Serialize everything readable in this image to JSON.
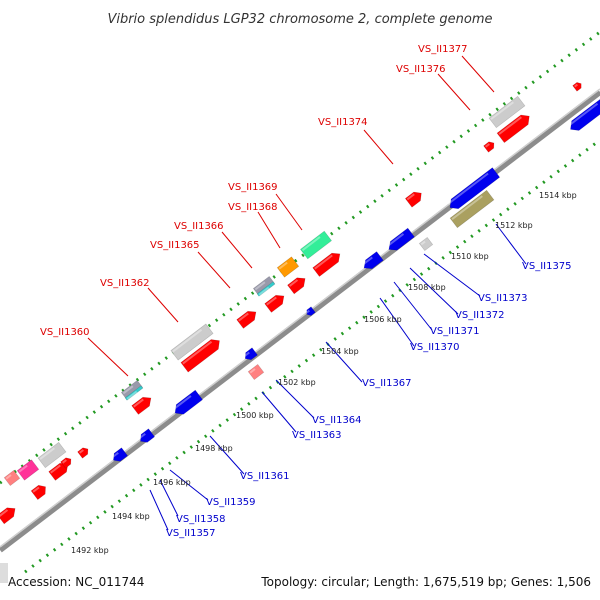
{
  "title": "Vibrio splendidus LGP32 chromosome 2, complete genome",
  "footer": {
    "accession": "Accession: NC_011744",
    "summary": "Topology: circular; Length: 1,675,519 bp; Genes: 1,506"
  },
  "colors": {
    "forward_label": "#dd0000",
    "reverse_label": "#0000cc",
    "backbone": "#999999",
    "tick_dots": "#229922"
  },
  "ticks": [
    "1492 kbp",
    "1494 kbp",
    "1496 kbp",
    "1498 kbp",
    "1500 kbp",
    "1502 kbp",
    "1504 kbp",
    "1506 kbp",
    "1508 kbp",
    "1510 kbp",
    "1512 kbp",
    "1514 kbp"
  ],
  "forward_labels": [
    "VS_II1360",
    "VS_II1362",
    "VS_II1365",
    "VS_II1366",
    "VS_II1368",
    "VS_II1369",
    "VS_II1374",
    "VS_II1376",
    "VS_II1377"
  ],
  "reverse_labels": [
    "VS_II1357",
    "VS_II1358",
    "VS_II1359",
    "VS_II1361",
    "VS_II1363",
    "VS_II1364",
    "VS_II1367",
    "VS_II1370",
    "VS_II1371",
    "VS_II1372",
    "VS_II1373",
    "VS_II1375"
  ]
}
